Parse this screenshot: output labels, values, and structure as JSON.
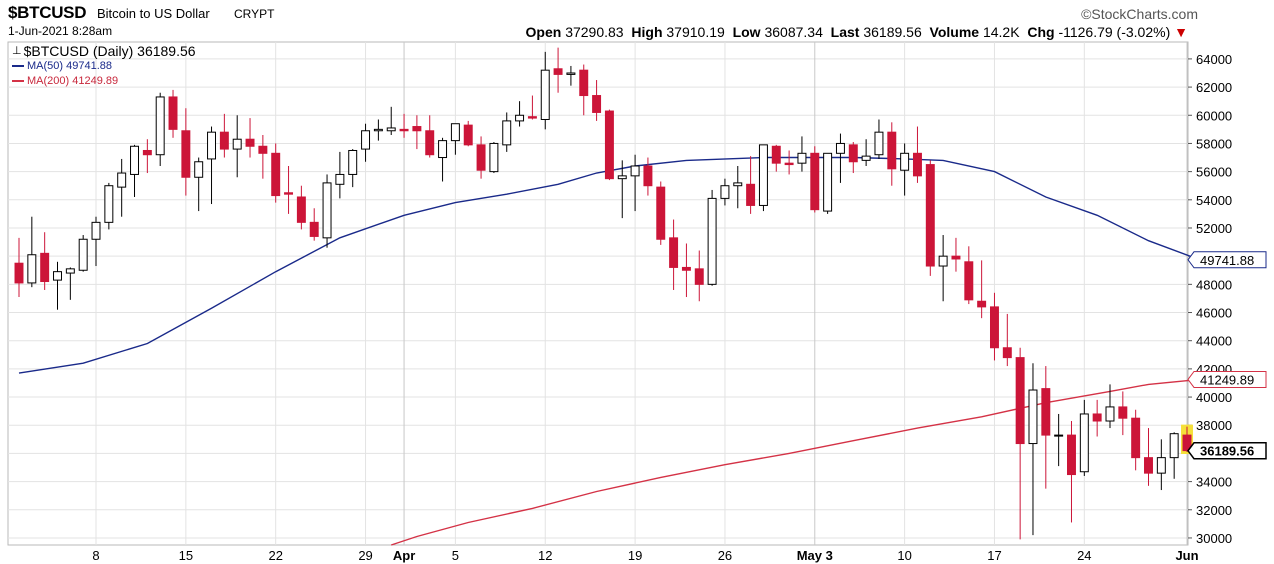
{
  "header": {
    "symbol": "$BTCUSD",
    "description": "Bitcoin to US Dollar",
    "exchange": "CRYPT",
    "brand": "©StockCharts.com",
    "date": "1-Jun-2021 8:28am",
    "open_label": "Open",
    "open": "37290.83",
    "high_label": "High",
    "high": "37910.19",
    "low_label": "Low",
    "low": "36087.34",
    "last_label": "Last",
    "last": "36189.56",
    "volume_label": "Volume",
    "volume": "14.2K",
    "chg_label": "Chg",
    "chg": "-1126.79 (-3.02%)",
    "chg_arrow": "▼"
  },
  "legend": {
    "main": "$BTCUSD (Daily) 36189.56",
    "ma50": "MA(50) 49741.88",
    "ma200": "MA(200) 41249.89"
  },
  "colors": {
    "up": "#000000",
    "down": "#cc1538",
    "ma50": "#1a2a8a",
    "ma200": "#d43246",
    "last_bg": "#f5e03a",
    "grid": "#e3e3e3"
  },
  "chart_data": {
    "type": "candlestick",
    "ylim": [
      29500,
      65200
    ],
    "yticks": [
      30000,
      32000,
      34000,
      36000,
      38000,
      40000,
      42000,
      44000,
      46000,
      48000,
      50000,
      52000,
      54000,
      56000,
      58000,
      60000,
      62000,
      64000
    ],
    "xticks": [
      {
        "label": "8",
        "index": 6
      },
      {
        "label": "15",
        "index": 13
      },
      {
        "label": "22",
        "index": 20
      },
      {
        "label": "29",
        "index": 27
      },
      {
        "label": "Apr",
        "index": 30
      },
      {
        "label": "5",
        "index": 34
      },
      {
        "label": "12",
        "index": 41
      },
      {
        "label": "19",
        "index": 48
      },
      {
        "label": "26",
        "index": 55
      },
      {
        "label": "May 3",
        "index": 62
      },
      {
        "label": "10",
        "index": 69
      },
      {
        "label": "17",
        "index": 76
      },
      {
        "label": "24",
        "index": 83
      },
      {
        "label": "Jun",
        "index": 91
      }
    ],
    "major_xticks": [
      "Apr",
      "May 3",
      "Jun"
    ],
    "ohlc": [
      [
        49500,
        51300,
        47100,
        48100
      ],
      [
        48100,
        52800,
        47800,
        50100
      ],
      [
        50200,
        51700,
        47600,
        48200
      ],
      [
        48300,
        49600,
        46200,
        48900
      ],
      [
        48800,
        49200,
        46900,
        49100
      ],
      [
        49000,
        51500,
        48900,
        51200
      ],
      [
        51200,
        52800,
        49300,
        52400
      ],
      [
        52400,
        55200,
        51900,
        55000
      ],
      [
        54900,
        56900,
        52800,
        55900
      ],
      [
        55800,
        57900,
        54200,
        57800
      ],
      [
        57500,
        58300,
        55900,
        57200
      ],
      [
        57200,
        61600,
        56400,
        61300
      ],
      [
        61300,
        61800,
        58400,
        59000
      ],
      [
        58900,
        60500,
        54300,
        55600
      ],
      [
        55600,
        57000,
        53200,
        56700
      ],
      [
        56900,
        59200,
        53700,
        58800
      ],
      [
        58800,
        60100,
        57000,
        57600
      ],
      [
        57600,
        60000,
        55600,
        58300
      ],
      [
        58300,
        59800,
        57000,
        57800
      ],
      [
        57800,
        58600,
        55500,
        57300
      ],
      [
        57300,
        58000,
        53800,
        54300
      ],
      [
        54500,
        56400,
        53000,
        54400
      ],
      [
        54200,
        55000,
        51900,
        52400
      ],
      [
        52400,
        53400,
        51100,
        51400
      ],
      [
        51300,
        55800,
        50600,
        55200
      ],
      [
        55100,
        57400,
        54100,
        55800
      ],
      [
        55800,
        57600,
        54900,
        57500
      ],
      [
        57600,
        59400,
        56700,
        58900
      ],
      [
        58900,
        59700,
        58200,
        59000
      ],
      [
        58900,
        60600,
        58600,
        59100
      ],
      [
        59000,
        60100,
        58400,
        58900
      ],
      [
        59200,
        60000,
        57600,
        58900
      ],
      [
        58900,
        60000,
        57000,
        57200
      ],
      [
        57000,
        58400,
        55300,
        58200
      ],
      [
        58200,
        59400,
        57200,
        59400
      ],
      [
        59300,
        59600,
        57800,
        57900
      ],
      [
        57900,
        58500,
        55500,
        56100
      ],
      [
        56000,
        58100,
        55900,
        58000
      ],
      [
        57900,
        60200,
        57400,
        59600
      ],
      [
        59600,
        61000,
        59200,
        60000
      ],
      [
        59900,
        61400,
        59700,
        59800
      ],
      [
        59700,
        64500,
        59000,
        63200
      ],
      [
        63300,
        64800,
        61600,
        62900
      ],
      [
        62900,
        63500,
        62100,
        63000
      ],
      [
        63200,
        63600,
        60000,
        61400
      ],
      [
        61400,
        62500,
        59600,
        60200
      ],
      [
        60300,
        60400,
        55400,
        55500
      ],
      [
        55500,
        56800,
        52700,
        55700
      ],
      [
        55700,
        57200,
        53200,
        56400
      ],
      [
        56400,
        57000,
        54300,
        55000
      ],
      [
        54900,
        55300,
        50800,
        51200
      ],
      [
        51300,
        52600,
        47600,
        49200
      ],
      [
        49200,
        50900,
        47100,
        49000
      ],
      [
        49100,
        50400,
        46800,
        48000
      ],
      [
        48000,
        54700,
        47900,
        54100
      ],
      [
        54100,
        55500,
        53600,
        55000
      ],
      [
        55000,
        56400,
        53400,
        55200
      ],
      [
        55100,
        57100,
        53000,
        53600
      ],
      [
        53600,
        57900,
        53200,
        57900
      ],
      [
        57800,
        57900,
        56000,
        56600
      ],
      [
        56600,
        57500,
        55800,
        56500
      ],
      [
        56600,
        58500,
        56000,
        57300
      ],
      [
        57300,
        57800,
        53100,
        53300
      ],
      [
        53200,
        57200,
        53000,
        57300
      ],
      [
        57300,
        58700,
        55200,
        58000
      ],
      [
        57900,
        58100,
        55900,
        56700
      ],
      [
        56800,
        58300,
        56400,
        57100
      ],
      [
        57200,
        59700,
        56900,
        58800
      ],
      [
        58800,
        59500,
        55000,
        56200
      ],
      [
        56100,
        58000,
        54300,
        57300
      ],
      [
        57300,
        59200,
        55200,
        55700
      ],
      [
        56500,
        56800,
        48600,
        49300
      ],
      [
        49300,
        51500,
        46800,
        50000
      ],
      [
        50000,
        51300,
        48900,
        49800
      ],
      [
        49600,
        50700,
        46600,
        46900
      ],
      [
        46800,
        49700,
        45600,
        46400
      ],
      [
        46400,
        47400,
        42600,
        43500
      ],
      [
        43500,
        45900,
        42200,
        42800
      ],
      [
        42800,
        43500,
        29900,
        36700
      ],
      [
        36700,
        42400,
        30200,
        40500
      ],
      [
        40600,
        42200,
        33500,
        37300
      ],
      [
        37300,
        38800,
        35100,
        37300
      ],
      [
        37300,
        38300,
        31100,
        34500
      ],
      [
        34700,
        39800,
        34400,
        38800
      ],
      [
        38800,
        39800,
        37200,
        38300
      ],
      [
        38300,
        40900,
        37800,
        39300
      ],
      [
        39300,
        40400,
        37300,
        38500
      ],
      [
        38500,
        39100,
        34800,
        35700
      ],
      [
        35700,
        37800,
        33700,
        34600
      ],
      [
        34600,
        37000,
        33400,
        35700
      ],
      [
        35700,
        37500,
        34200,
        37400
      ],
      [
        37300,
        37900,
        36100,
        36200
      ]
    ],
    "series": [
      {
        "name": "MA(50)",
        "last": 49741.88,
        "points": [
          [
            0,
            41700
          ],
          [
            5,
            42400
          ],
          [
            10,
            43800
          ],
          [
            15,
            46300
          ],
          [
            20,
            48900
          ],
          [
            25,
            51300
          ],
          [
            30,
            52900
          ],
          [
            34,
            53800
          ],
          [
            38,
            54400
          ],
          [
            42,
            55100
          ],
          [
            45,
            55900
          ],
          [
            48,
            56400
          ],
          [
            52,
            56800
          ],
          [
            58,
            57000
          ],
          [
            62,
            57000
          ],
          [
            65,
            57000
          ],
          [
            69,
            56900
          ],
          [
            72,
            56800
          ],
          [
            76,
            56000
          ],
          [
            80,
            54200
          ],
          [
            84,
            52900
          ],
          [
            88,
            51100
          ],
          [
            92,
            49742
          ]
        ]
      },
      {
        "name": "MA(200)",
        "last": 41249.89,
        "points": [
          [
            29,
            29500
          ],
          [
            31,
            30100
          ],
          [
            35,
            31100
          ],
          [
            40,
            32100
          ],
          [
            45,
            33300
          ],
          [
            50,
            34300
          ],
          [
            55,
            35200
          ],
          [
            60,
            36000
          ],
          [
            65,
            36900
          ],
          [
            70,
            37800
          ],
          [
            75,
            38600
          ],
          [
            80,
            39600
          ],
          [
            85,
            40400
          ],
          [
            88,
            40900
          ],
          [
            92,
            41250
          ]
        ]
      }
    ]
  }
}
